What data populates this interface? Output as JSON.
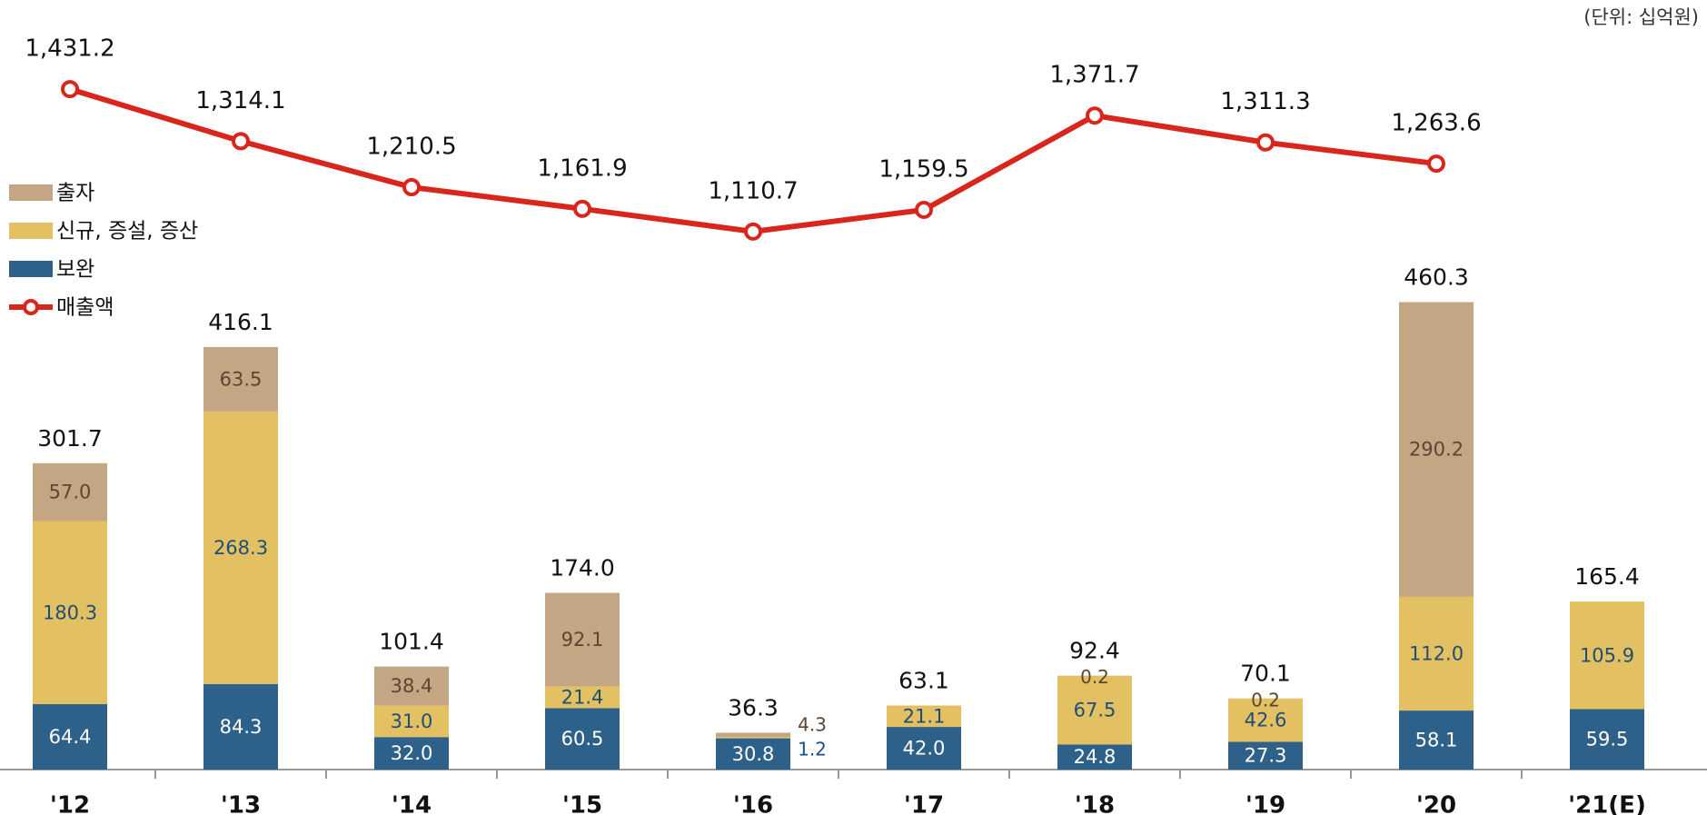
{
  "chart_data": {
    "type": "bar",
    "unit": "(단위: 십억원)",
    "categories": [
      "'12",
      "'13",
      "'14",
      "'15",
      "'16",
      "'17",
      "'18",
      "'19",
      "'20",
      "'21(E)"
    ],
    "ylim": [
      0,
      722
    ],
    "y2lim": [
      -100,
      1550
    ],
    "series": [
      {
        "name": "보완",
        "color": "#2e6189",
        "values": [
          64.4,
          84.3,
          32.0,
          60.5,
          30.8,
          42.0,
          24.8,
          27.3,
          58.1,
          59.5
        ],
        "value_labels": [
          "64.4",
          "84.3",
          "32.0",
          "60.5",
          "30.8",
          "42.0",
          "24.8",
          "27.3",
          "58.1",
          "59.5"
        ]
      },
      {
        "name": "신규, 증설, 증산",
        "color": "#e3c062",
        "values": [
          180.3,
          268.3,
          31.0,
          21.4,
          1.2,
          21.1,
          67.5,
          42.6,
          112.0,
          105.9
        ],
        "value_labels": [
          "180.3",
          "268.3",
          "31.0",
          "21.4",
          "1.2",
          "21.1",
          "67.5",
          "42.6",
          "112.0",
          "105.9"
        ]
      },
      {
        "name": "출자",
        "color": "#c4a685",
        "values": [
          57.0,
          63.5,
          38.4,
          92.1,
          4.3,
          null,
          0.2,
          0.2,
          290.2,
          null
        ],
        "value_labels": [
          "57.0",
          "63.5",
          "38.4",
          "92.1",
          "4.3",
          null,
          "0.2",
          "0.2",
          "290.2",
          null
        ]
      },
      {
        "name": "매출액",
        "type": "line",
        "axis": "y2",
        "color": "#d9261c",
        "values": [
          1431.2,
          1314.1,
          1210.5,
          1161.9,
          1110.7,
          1159.5,
          1371.7,
          1311.3,
          1263.6,
          null
        ],
        "value_labels": [
          "1,431.2",
          "1,314.1",
          "1,210.5",
          "1,161.9",
          "1,110.7",
          "1,159.5",
          "1,371.7",
          "1,311.3",
          "1,263.6",
          null
        ]
      }
    ],
    "totals": [
      301.7,
      416.1,
      101.4,
      174.0,
      36.3,
      63.1,
      92.4,
      70.1,
      460.3,
      165.4
    ],
    "total_labels": [
      "301.7",
      "416.1",
      "101.4",
      "174.0",
      "36.3",
      "63.1",
      "92.4",
      "70.1",
      "460.3",
      "165.4"
    ]
  }
}
